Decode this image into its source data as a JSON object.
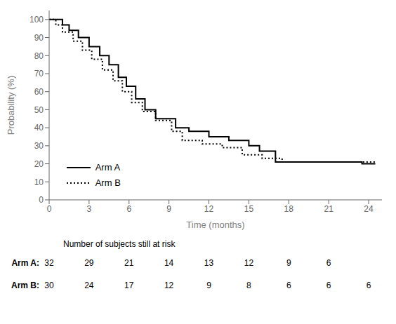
{
  "chart_data": {
    "type": "line",
    "x_label": "Time (months)",
    "y_label": "Probability (%)",
    "series": [
      {
        "name": "Arm A",
        "color": "#000000",
        "line_style": "solid",
        "x": [
          0,
          1.0,
          1.5,
          2.2,
          3.0,
          3.8,
          4.5,
          5.2,
          5.8,
          6.5,
          7.2,
          8.0,
          9.5,
          10.5,
          12.0,
          13.5,
          15.0,
          15.8,
          17.0,
          20.0,
          23.5,
          24.5
        ],
        "values": [
          100,
          97,
          94,
          90,
          85,
          80,
          75,
          68,
          63,
          56,
          50,
          45,
          40,
          38,
          35,
          33,
          30,
          27,
          21,
          21,
          20,
          20
        ]
      },
      {
        "name": "Arm B",
        "color": "#000000",
        "line_style": "dotted",
        "x": [
          0,
          0.5,
          1.0,
          1.8,
          2.5,
          3.2,
          4.0,
          4.8,
          5.5,
          6.2,
          7.0,
          8.0,
          9.2,
          10.0,
          11.5,
          13.0,
          14.5,
          16.0,
          17.5,
          20.0,
          22.0,
          24.5
        ],
        "values": [
          100,
          97,
          93,
          88,
          83,
          78,
          72,
          66,
          60,
          54,
          49,
          44,
          38,
          33,
          31,
          29,
          25,
          23,
          21,
          21,
          21,
          21
        ]
      }
    ],
    "xlim": [
      0,
      25
    ],
    "ylim": [
      0,
      105
    ],
    "xticks": [
      0,
      3,
      6,
      9,
      12,
      15,
      18,
      21,
      24
    ],
    "yticks": [
      0,
      10,
      20,
      30,
      40,
      50,
      60,
      70,
      80,
      90,
      100
    ],
    "grid": false,
    "legend": "lower left",
    "risk_table": {
      "title": "Number of subjects still at risk",
      "times": [
        0,
        3,
        6,
        9,
        12,
        15,
        18,
        21,
        24
      ],
      "rows": [
        {
          "label": "Arm A:",
          "values": [
            32,
            29,
            21,
            14,
            13,
            12,
            9,
            6,
            null
          ]
        },
        {
          "label": "Arm B:",
          "values": [
            30,
            24,
            17,
            12,
            9,
            8,
            6,
            6,
            6
          ]
        }
      ]
    }
  }
}
